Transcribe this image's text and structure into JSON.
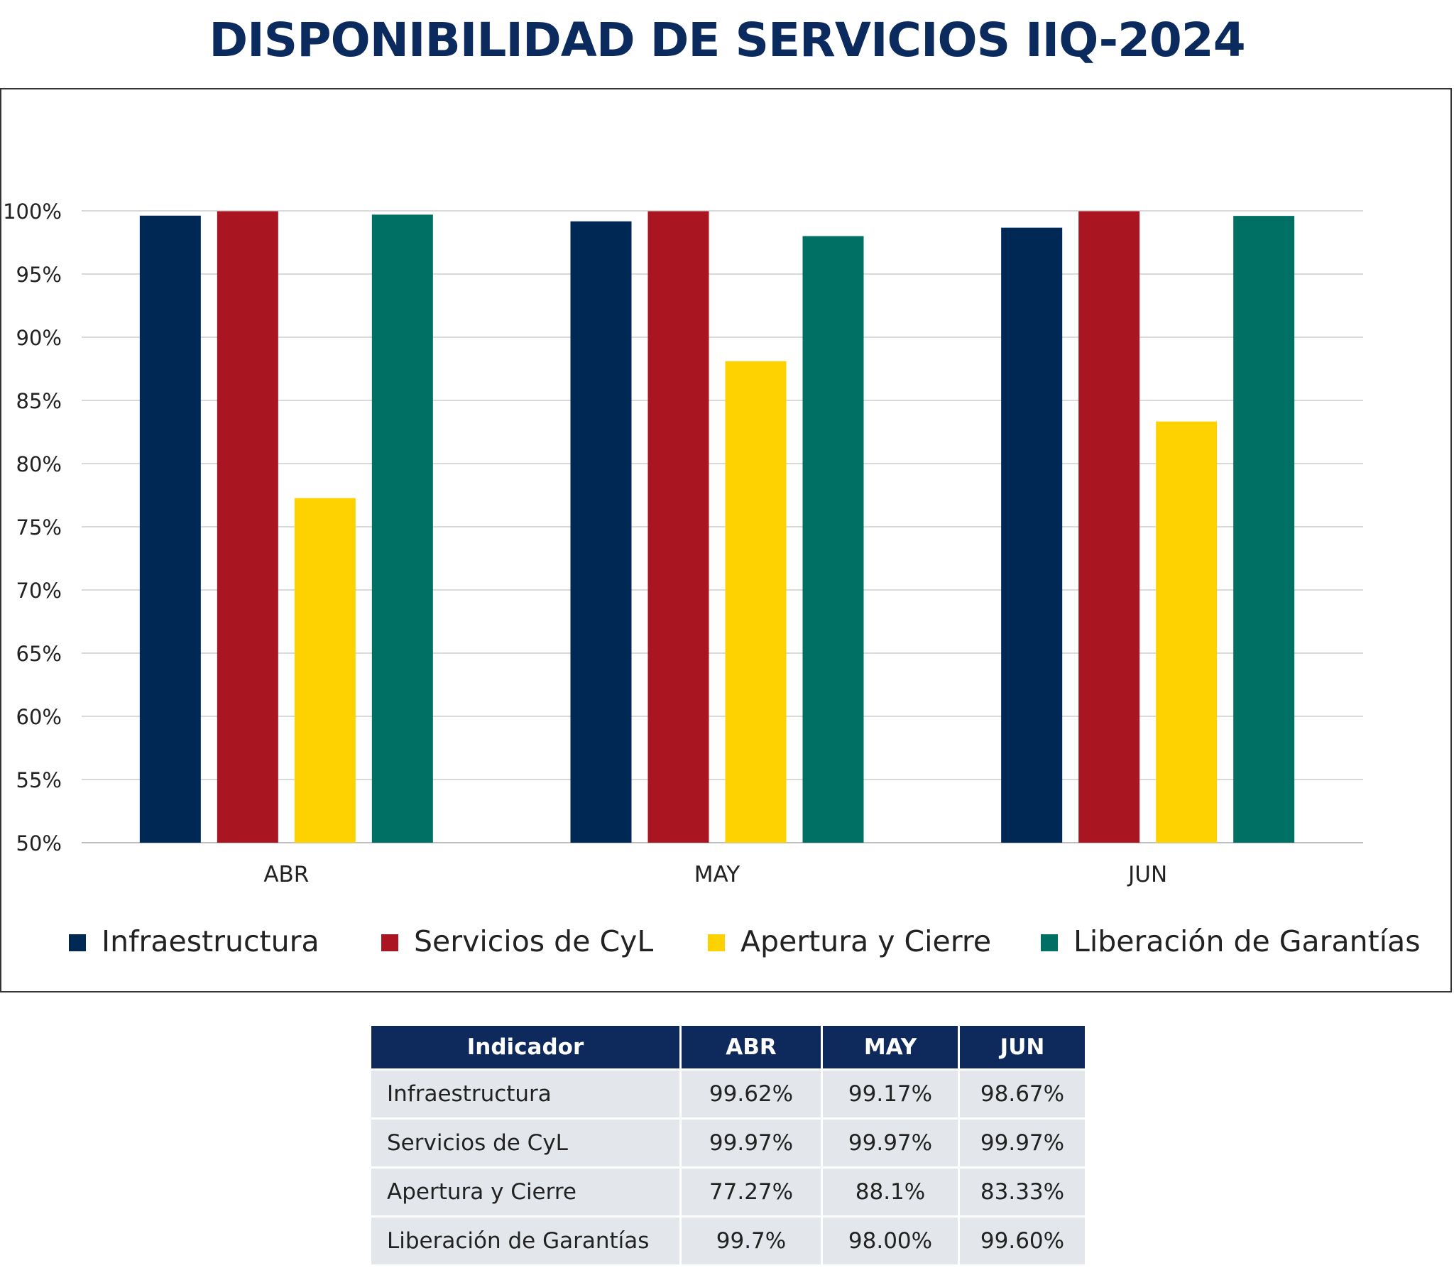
{
  "title": "DISPONIBILIDAD DE SERVICIOS IIQ-2024",
  "chart_data": {
    "type": "bar",
    "categories": [
      "ABR",
      "MAY",
      "JUN"
    ],
    "series": [
      {
        "name": "Infraestructura",
        "color": "#002855",
        "values": [
          99.62,
          99.17,
          98.67
        ]
      },
      {
        "name": "Servicios de CyL",
        "color": "#a91622",
        "values": [
          99.97,
          99.97,
          99.97
        ]
      },
      {
        "name": "Apertura y Cierre",
        "color": "#fed100",
        "values": [
          77.27,
          88.1,
          83.33
        ]
      },
      {
        "name": "Liberación de Garantías",
        "color": "#007064",
        "values": [
          99.7,
          98.0,
          99.6
        ]
      }
    ],
    "ylim": [
      50,
      100
    ],
    "yticks": [
      "50%",
      "55%",
      "60%",
      "65%",
      "70%",
      "75%",
      "80%",
      "85%",
      "90%",
      "95%",
      "100%"
    ],
    "grid": true,
    "legend": "bottom"
  },
  "table": {
    "headers": [
      "Indicador",
      "ABR",
      "MAY",
      "JUN"
    ],
    "rows": [
      [
        "Infraestructura",
        "99.62%",
        "99.17%",
        "98.67%"
      ],
      [
        "Servicios de CyL",
        "99.97%",
        "99.97%",
        "99.97%"
      ],
      [
        "Apertura y Cierre",
        "77.27%",
        "88.1%",
        "83.33%"
      ],
      [
        "Liberación de Garantías",
        "99.7%",
        "98.00%",
        "99.60%"
      ]
    ]
  }
}
